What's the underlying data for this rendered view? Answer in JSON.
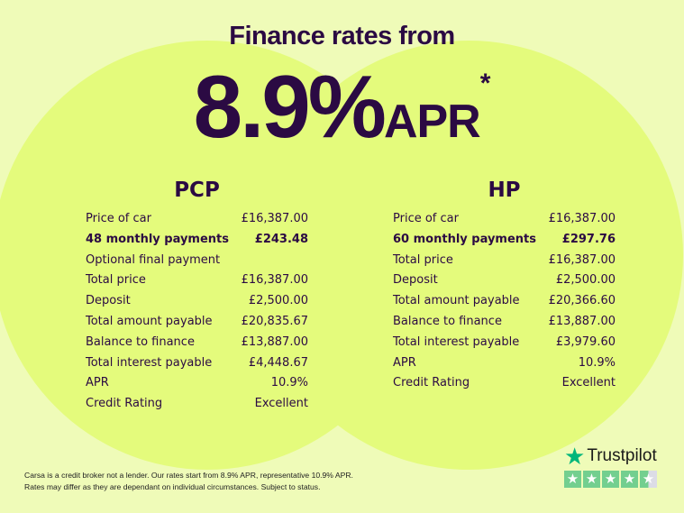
{
  "header": {
    "title": "Finance rates from",
    "rate": "8.9%",
    "apr": "APR",
    "asterisk": "*"
  },
  "plans": [
    {
      "name": "PCP",
      "rows": [
        {
          "label": "Price of car",
          "value": "£16,387.00",
          "bold": false
        },
        {
          "label": "48 monthly payments",
          "value": "£243.48",
          "bold": true
        },
        {
          "label": "Optional final payment",
          "value": "",
          "bold": false
        },
        {
          "label": "Total price",
          "value": "£16,387.00",
          "bold": false
        },
        {
          "label": "Deposit",
          "value": "£2,500.00",
          "bold": false
        },
        {
          "label": "Total amount payable",
          "value": "£20,835.67",
          "bold": false
        },
        {
          "label": "Balance to finance",
          "value": "£13,887.00",
          "bold": false
        },
        {
          "label": "Total interest payable",
          "value": "£4,448.67",
          "bold": false
        },
        {
          "label": "APR",
          "value": "10.9%",
          "bold": false
        },
        {
          "label": "Credit Rating",
          "value": "Excellent",
          "bold": false
        }
      ]
    },
    {
      "name": "HP",
      "rows": [
        {
          "label": "Price of car",
          "value": "£16,387.00",
          "bold": false
        },
        {
          "label": "60 monthly payments",
          "value": "£297.76",
          "bold": true
        },
        {
          "label": "Total price",
          "value": "£16,387.00",
          "bold": false
        },
        {
          "label": "Deposit",
          "value": "£2,500.00",
          "bold": false
        },
        {
          "label": "Total amount payable",
          "value": "£20,366.60",
          "bold": false
        },
        {
          "label": "Balance to finance",
          "value": "£13,887.00",
          "bold": false
        },
        {
          "label": "Total interest payable",
          "value": "£3,979.60",
          "bold": false
        },
        {
          "label": "APR",
          "value": "10.9%",
          "bold": false
        },
        {
          "label": "Credit Rating",
          "value": "Excellent",
          "bold": false
        }
      ]
    }
  ],
  "disclaimer": {
    "line1": "Carsa is a credit broker not a lender. Our rates start from 8.9% APR, representative 10.9% APR.",
    "line2": "Rates may differ as they are dependant on individual circumstances. Subject to status."
  },
  "trustpilot": {
    "brand": "Trustpilot",
    "rating_stars": 4.5,
    "icon": "star-icon"
  },
  "colors": {
    "background": "#effbb8",
    "circle": "#e4fb7c",
    "text": "#2b0a43",
    "trustpilot_green": "#00b67a"
  }
}
